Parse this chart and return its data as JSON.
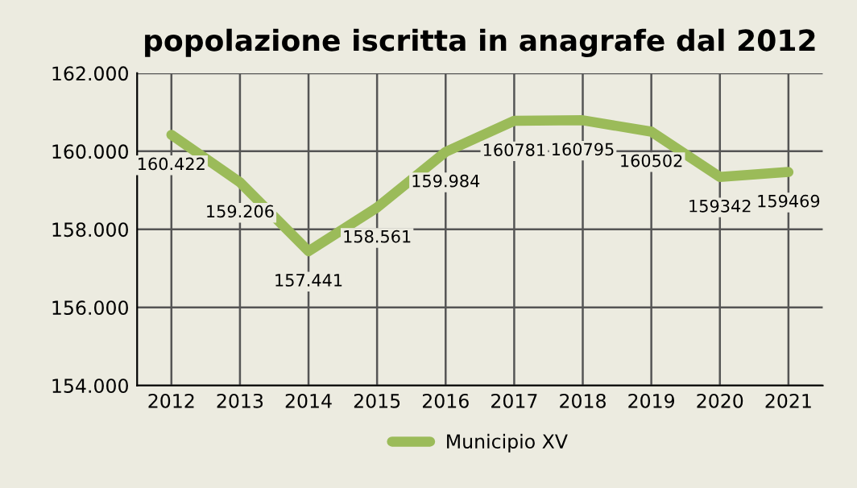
{
  "chart_data": {
    "type": "line",
    "title": "popolazione iscritta in anagrafe dal 2012",
    "categories": [
      "2012",
      "2013",
      "2014",
      "2015",
      "2016",
      "2017",
      "2018",
      "2019",
      "2020",
      "2021"
    ],
    "series": [
      {
        "name": "Municipio XV",
        "color": "#9bbb59",
        "values": [
          160422,
          159206,
          157441,
          158561,
          159984,
          160781,
          160795,
          160502,
          159342,
          159469
        ],
        "value_labels": [
          "160.422",
          "159.206",
          "157.441",
          "158.561",
          "159.984",
          "160781",
          "160795",
          "160502",
          "159342",
          "159469"
        ]
      }
    ],
    "ylim": [
      154000,
      162000
    ],
    "yticks": [
      {
        "value": 154000,
        "label": "154.000"
      },
      {
        "value": 156000,
        "label": "156.000"
      },
      {
        "value": 158000,
        "label": "158.000"
      },
      {
        "value": 160000,
        "label": "160.000"
      },
      {
        "value": 162000,
        "label": "162.000"
      }
    ],
    "grid": true,
    "legend": "bottom",
    "marker": "none",
    "line_style": "solid"
  }
}
